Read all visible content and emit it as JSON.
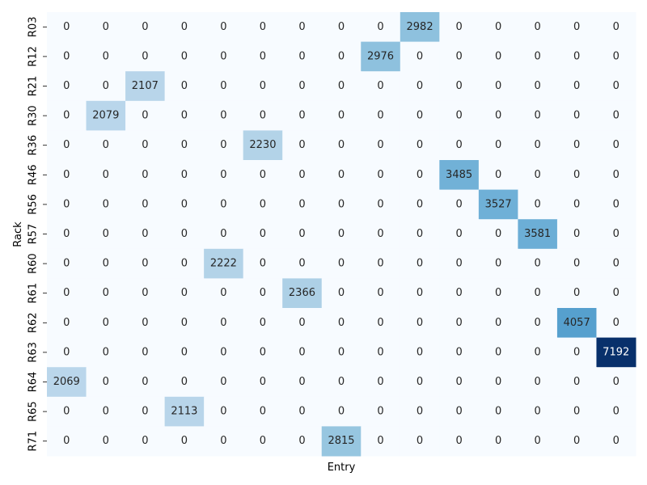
{
  "chart_data": {
    "type": "heatmap",
    "title": "",
    "xlabel": "Entry",
    "ylabel": "Rack",
    "x_tick_labels": [],
    "y_tick_labels": [
      "R03",
      "R12",
      "R21",
      "R30",
      "R36",
      "R46",
      "R56",
      "R57",
      "R60",
      "R61",
      "R62",
      "R63",
      "R64",
      "R65",
      "R71"
    ],
    "colormap": "Blues",
    "value_range": [
      0,
      7192
    ],
    "colorbar": false,
    "annotations": true,
    "values": [
      [
        0,
        0,
        0,
        0,
        0,
        0,
        0,
        0,
        0,
        2982,
        0,
        0,
        0,
        0,
        0
      ],
      [
        0,
        0,
        0,
        0,
        0,
        0,
        0,
        0,
        2976,
        0,
        0,
        0,
        0,
        0,
        0
      ],
      [
        0,
        0,
        2107,
        0,
        0,
        0,
        0,
        0,
        0,
        0,
        0,
        0,
        0,
        0,
        0
      ],
      [
        0,
        2079,
        0,
        0,
        0,
        0,
        0,
        0,
        0,
        0,
        0,
        0,
        0,
        0,
        0
      ],
      [
        0,
        0,
        0,
        0,
        0,
        2230,
        0,
        0,
        0,
        0,
        0,
        0,
        0,
        0,
        0
      ],
      [
        0,
        0,
        0,
        0,
        0,
        0,
        0,
        0,
        0,
        0,
        3485,
        0,
        0,
        0,
        0
      ],
      [
        0,
        0,
        0,
        0,
        0,
        0,
        0,
        0,
        0,
        0,
        0,
        3527,
        0,
        0,
        0
      ],
      [
        0,
        0,
        0,
        0,
        0,
        0,
        0,
        0,
        0,
        0,
        0,
        0,
        3581,
        0,
        0
      ],
      [
        0,
        0,
        0,
        0,
        2222,
        0,
        0,
        0,
        0,
        0,
        0,
        0,
        0,
        0,
        0
      ],
      [
        0,
        0,
        0,
        0,
        0,
        0,
        2366,
        0,
        0,
        0,
        0,
        0,
        0,
        0,
        0
      ],
      [
        0,
        0,
        0,
        0,
        0,
        0,
        0,
        0,
        0,
        0,
        0,
        0,
        0,
        4057,
        0
      ],
      [
        0,
        0,
        0,
        0,
        0,
        0,
        0,
        0,
        0,
        0,
        0,
        0,
        0,
        0,
        7192
      ],
      [
        2069,
        0,
        0,
        0,
        0,
        0,
        0,
        0,
        0,
        0,
        0,
        0,
        0,
        0,
        0
      ],
      [
        0,
        0,
        0,
        2113,
        0,
        0,
        0,
        0,
        0,
        0,
        0,
        0,
        0,
        0,
        0
      ],
      [
        0,
        0,
        0,
        0,
        0,
        0,
        0,
        2815,
        0,
        0,
        0,
        0,
        0,
        0,
        0
      ]
    ]
  }
}
